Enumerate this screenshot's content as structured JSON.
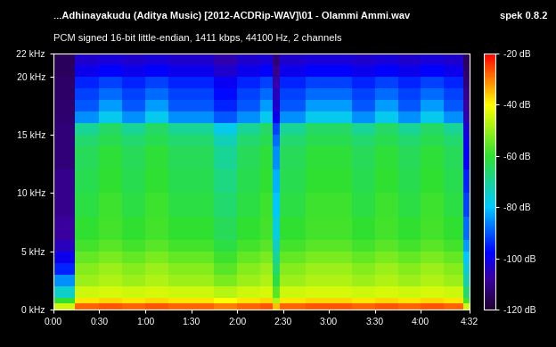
{
  "chart_data": {
    "type": "heatmap",
    "title": "...Adhinayakudu (Aditya Music) [2012-ACDRip-WAV]\\01 - Olammi Ammi.wav",
    "subtitle": "PCM signed 16-bit little-endian, 1411 kbps, 44100 Hz, 2 channels",
    "annotations": [
      "spek 0.8.2"
    ],
    "xlim": [
      0,
      272
    ],
    "xticks": [
      {
        "value": 0,
        "label": "0:00"
      },
      {
        "value": 30,
        "label": "0:30"
      },
      {
        "value": 60,
        "label": "1:00"
      },
      {
        "value": 90,
        "label": "1:30"
      },
      {
        "value": 120,
        "label": "2:00"
      },
      {
        "value": 150,
        "label": "2:30"
      },
      {
        "value": 180,
        "label": "3:00"
      },
      {
        "value": 210,
        "label": "3:30"
      },
      {
        "value": 240,
        "label": "4:00"
      },
      {
        "value": 272,
        "label": "4:32"
      }
    ],
    "ylim": [
      0,
      22
    ],
    "yticks": [
      {
        "value": 0,
        "label": "0 kHz"
      },
      {
        "value": 5,
        "label": "5 kHz"
      },
      {
        "value": 10,
        "label": "10 kHz"
      },
      {
        "value": 15,
        "label": "15 kHz"
      },
      {
        "value": 20,
        "label": "20 kHz"
      },
      {
        "value": 22,
        "label": "22 kHz"
      }
    ],
    "x_edges": [
      0,
      14,
      30,
      45,
      60,
      75,
      90,
      105,
      120,
      135,
      143,
      148,
      165,
      180,
      195,
      210,
      225,
      240,
      255,
      268,
      272
    ],
    "y_edges": [
      0,
      0.5,
      1,
      2,
      3,
      4,
      5,
      6,
      8,
      10,
      12,
      14,
      15,
      16,
      17,
      18,
      19,
      20,
      21,
      22
    ],
    "cells": [
      [
        -45,
        -60,
        -75,
        -85,
        -95,
        -100,
        -105,
        -108,
        -110,
        -110,
        -112,
        -112,
        -112,
        -113,
        -113,
        -114,
        -114,
        -115,
        -115
      ],
      [
        -28,
        -38,
        -45,
        -50,
        -52,
        -55,
        -58,
        -60,
        -62,
        -63,
        -64,
        -66,
        -70,
        -85,
        -90,
        -92,
        -95,
        -100,
        -103
      ],
      [
        -27,
        -37,
        -44,
        -48,
        -50,
        -53,
        -56,
        -58,
        -59,
        -60,
        -61,
        -63,
        -65,
        -78,
        -84,
        -88,
        -92,
        -98,
        -102
      ],
      [
        -28,
        -38,
        -45,
        -50,
        -52,
        -55,
        -58,
        -60,
        -62,
        -63,
        -64,
        -66,
        -70,
        -85,
        -90,
        -92,
        -95,
        -100,
        -103
      ],
      [
        -27,
        -37,
        -44,
        -48,
        -50,
        -53,
        -56,
        -58,
        -59,
        -60,
        -61,
        -63,
        -65,
        -78,
        -84,
        -88,
        -92,
        -98,
        -102
      ],
      [
        -28,
        -38,
        -45,
        -50,
        -52,
        -55,
        -58,
        -60,
        -62,
        -63,
        -64,
        -66,
        -70,
        -85,
        -90,
        -92,
        -95,
        -100,
        -103
      ],
      [
        -28,
        -38,
        -45,
        -50,
        -52,
        -55,
        -58,
        -60,
        -62,
        -63,
        -64,
        -66,
        -70,
        -85,
        -90,
        -92,
        -95,
        -100,
        -103
      ],
      [
        -30,
        -40,
        -47,
        -53,
        -56,
        -59,
        -62,
        -64,
        -66,
        -68,
        -70,
        -73,
        -78,
        -90,
        -95,
        -97,
        -99,
        -103,
        -106
      ],
      [
        -28,
        -38,
        -45,
        -50,
        -52,
        -55,
        -58,
        -60,
        -62,
        -63,
        -64,
        -66,
        -70,
        -85,
        -90,
        -92,
        -95,
        -100,
        -103
      ],
      [
        -27,
        -37,
        -44,
        -48,
        -50,
        -53,
        -56,
        -58,
        -59,
        -60,
        -61,
        -63,
        -65,
        -78,
        -84,
        -88,
        -92,
        -98,
        -102
      ],
      [
        -35,
        -48,
        -56,
        -62,
        -66,
        -70,
        -74,
        -77,
        -80,
        -82,
        -85,
        -88,
        -92,
        -100,
        -103,
        -105,
        -107,
        -110,
        -112
      ],
      [
        -28,
        -38,
        -45,
        -50,
        -52,
        -55,
        -58,
        -60,
        -62,
        -63,
        -64,
        -66,
        -70,
        -85,
        -90,
        -92,
        -95,
        -100,
        -103
      ],
      [
        -27,
        -37,
        -44,
        -48,
        -50,
        -53,
        -56,
        -58,
        -59,
        -60,
        -61,
        -63,
        -65,
        -78,
        -84,
        -88,
        -92,
        -98,
        -102
      ],
      [
        -27,
        -37,
        -44,
        -48,
        -50,
        -53,
        -56,
        -58,
        -59,
        -60,
        -61,
        -63,
        -65,
        -78,
        -84,
        -88,
        -92,
        -98,
        -102
      ],
      [
        -28,
        -38,
        -45,
        -50,
        -52,
        -55,
        -58,
        -60,
        -62,
        -63,
        -64,
        -66,
        -70,
        -85,
        -90,
        -92,
        -95,
        -100,
        -103
      ],
      [
        -27,
        -37,
        -44,
        -48,
        -50,
        -53,
        -56,
        -58,
        -59,
        -60,
        -61,
        -63,
        -65,
        -78,
        -84,
        -88,
        -92,
        -98,
        -102
      ],
      [
        -28,
        -38,
        -45,
        -50,
        -52,
        -55,
        -58,
        -60,
        -62,
        -63,
        -64,
        -66,
        -70,
        -85,
        -90,
        -92,
        -95,
        -100,
        -103
      ],
      [
        -27,
        -37,
        -44,
        -48,
        -50,
        -53,
        -56,
        -58,
        -59,
        -60,
        -61,
        -63,
        -65,
        -78,
        -84,
        -88,
        -92,
        -98,
        -102
      ],
      [
        -28,
        -38,
        -45,
        -50,
        -52,
        -55,
        -58,
        -60,
        -62,
        -63,
        -64,
        -66,
        -70,
        -85,
        -90,
        -92,
        -95,
        -100,
        -103
      ],
      [
        -45,
        -58,
        -66,
        -72,
        -76,
        -80,
        -84,
        -88,
        -92,
        -95,
        -98,
        -100,
        -102,
        -106,
        -108,
        -110,
        -112,
        -114,
        -115
      ]
    ],
    "colorbar": {
      "range": [
        -120,
        -20
      ],
      "ticks": [
        {
          "value": -20,
          "label": "-20 dB"
        },
        {
          "value": -40,
          "label": "-40 dB"
        },
        {
          "value": -60,
          "label": "-60 dB"
        },
        {
          "value": -80,
          "label": "-80 dB"
        },
        {
          "value": -100,
          "label": "-100 dB"
        },
        {
          "value": -120,
          "label": "-120 dB"
        }
      ]
    }
  }
}
